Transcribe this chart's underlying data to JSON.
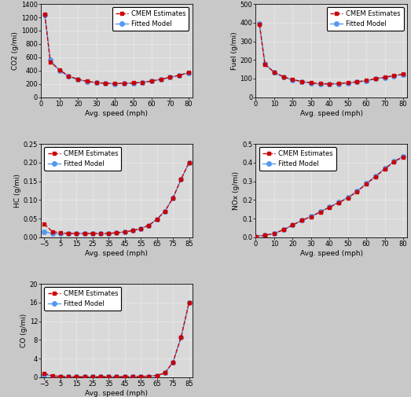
{
  "co2": {
    "speeds": [
      2,
      5,
      10,
      15,
      20,
      25,
      30,
      35,
      40,
      45,
      50,
      55,
      60,
      65,
      70,
      75,
      80
    ],
    "cmem": [
      1250,
      530,
      410,
      320,
      270,
      240,
      220,
      210,
      205,
      210,
      215,
      225,
      245,
      270,
      300,
      330,
      370
    ],
    "fitted": [
      1240,
      560,
      400,
      310,
      265,
      235,
      218,
      208,
      202,
      207,
      213,
      222,
      242,
      268,
      298,
      328,
      368
    ],
    "ylabel": "CO2 (g/mi)",
    "ylim": [
      0,
      1400
    ],
    "yticks": [
      0,
      200,
      400,
      600,
      800,
      1000,
      1200,
      1400
    ],
    "xlim": [
      0,
      82
    ],
    "xticks": [
      0,
      10,
      20,
      30,
      40,
      50,
      60,
      70,
      80
    ],
    "legend_loc": "upper right"
  },
  "fuel": {
    "speeds": [
      2,
      5,
      10,
      15,
      20,
      25,
      30,
      35,
      40,
      45,
      50,
      55,
      60,
      65,
      70,
      75,
      80
    ],
    "cmem": [
      390,
      175,
      135,
      110,
      95,
      85,
      78,
      73,
      72,
      74,
      78,
      83,
      90,
      100,
      108,
      116,
      125
    ],
    "fitted": [
      395,
      180,
      132,
      108,
      93,
      83,
      76,
      71,
      70,
      72,
      76,
      81,
      88,
      98,
      106,
      114,
      123
    ],
    "ylabel": "Fuel (g/mi)",
    "ylim": [
      0,
      500
    ],
    "yticks": [
      0,
      100,
      200,
      300,
      400,
      500
    ],
    "xlim": [
      0,
      82
    ],
    "xticks": [
      0,
      10,
      20,
      30,
      40,
      50,
      60,
      70,
      80
    ],
    "legend_loc": "upper right"
  },
  "hc": {
    "speeds": [
      -5,
      0,
      5,
      10,
      15,
      20,
      25,
      30,
      35,
      40,
      45,
      50,
      55,
      60,
      65,
      70,
      75,
      80,
      85
    ],
    "cmem": [
      0.035,
      0.015,
      0.012,
      0.01,
      0.01,
      0.01,
      0.01,
      0.01,
      0.01,
      0.012,
      0.014,
      0.018,
      0.023,
      0.032,
      0.048,
      0.07,
      0.105,
      0.155,
      0.2
    ],
    "fitted": [
      0.015,
      0.01,
      0.01,
      0.01,
      0.01,
      0.01,
      0.01,
      0.01,
      0.01,
      0.012,
      0.014,
      0.018,
      0.023,
      0.032,
      0.048,
      0.07,
      0.105,
      0.155,
      0.2
    ],
    "ylabel": "HC (g/mi)",
    "ylim": [
      0,
      0.25
    ],
    "yticks": [
      0.0,
      0.05,
      0.1,
      0.15,
      0.2,
      0.25
    ],
    "xlim": [
      -7,
      87
    ],
    "xticks": [
      -5,
      5,
      15,
      25,
      35,
      45,
      55,
      65,
      75,
      85
    ],
    "legend_loc": "upper left"
  },
  "nox": {
    "speeds": [
      0,
      5,
      10,
      15,
      20,
      25,
      30,
      35,
      40,
      45,
      50,
      55,
      60,
      65,
      70,
      75,
      80
    ],
    "cmem": [
      0.005,
      0.01,
      0.02,
      0.04,
      0.065,
      0.09,
      0.11,
      0.135,
      0.16,
      0.185,
      0.21,
      0.245,
      0.285,
      0.325,
      0.365,
      0.405,
      0.43
    ],
    "fitted": [
      0.005,
      0.01,
      0.02,
      0.04,
      0.065,
      0.09,
      0.112,
      0.137,
      0.162,
      0.187,
      0.213,
      0.248,
      0.288,
      0.328,
      0.368,
      0.408,
      0.433
    ],
    "ylabel": "NOx (g/mi)",
    "ylim": [
      0,
      0.5
    ],
    "yticks": [
      0.0,
      0.1,
      0.2,
      0.3,
      0.4,
      0.5
    ],
    "xlim": [
      0,
      82
    ],
    "xticks": [
      0,
      10,
      20,
      30,
      40,
      50,
      60,
      70,
      80
    ],
    "legend_loc": "upper left"
  },
  "co": {
    "speeds": [
      -5,
      0,
      5,
      10,
      15,
      20,
      25,
      30,
      35,
      40,
      45,
      50,
      55,
      60,
      65,
      70,
      75,
      80,
      85
    ],
    "cmem": [
      0.8,
      0.3,
      0.15,
      0.1,
      0.08,
      0.07,
      0.07,
      0.08,
      0.08,
      0.09,
      0.1,
      0.12,
      0.15,
      0.2,
      0.35,
      0.9,
      3.2,
      8.5,
      16.0
    ],
    "fitted": [
      0.5,
      0.2,
      0.12,
      0.09,
      0.08,
      0.07,
      0.07,
      0.08,
      0.08,
      0.09,
      0.1,
      0.12,
      0.15,
      0.2,
      0.35,
      0.9,
      3.2,
      8.5,
      16.0
    ],
    "ylabel": "CO (g/mi)",
    "ylim": [
      0,
      20.0
    ],
    "yticks": [
      0.0,
      4.0,
      8.0,
      12.0,
      16.0,
      20.0
    ],
    "xlim": [
      -7,
      87
    ],
    "xticks": [
      -5,
      5,
      15,
      25,
      35,
      45,
      55,
      65,
      75,
      85
    ],
    "legend_loc": "upper left"
  },
  "xlabel": "Avg. speed (mph)",
  "cmem_color": "#cc0000",
  "fitted_color": "#5599ee",
  "cmem_label": "CMEM Estimates",
  "fitted_label": "Fitted Model",
  "bg_color": "#d9d9d9",
  "grid_color": "#ffffff",
  "marker_size_cmem": 3,
  "marker_size_fitted": 4,
  "line_width": 1.0,
  "font_size": 6.5
}
